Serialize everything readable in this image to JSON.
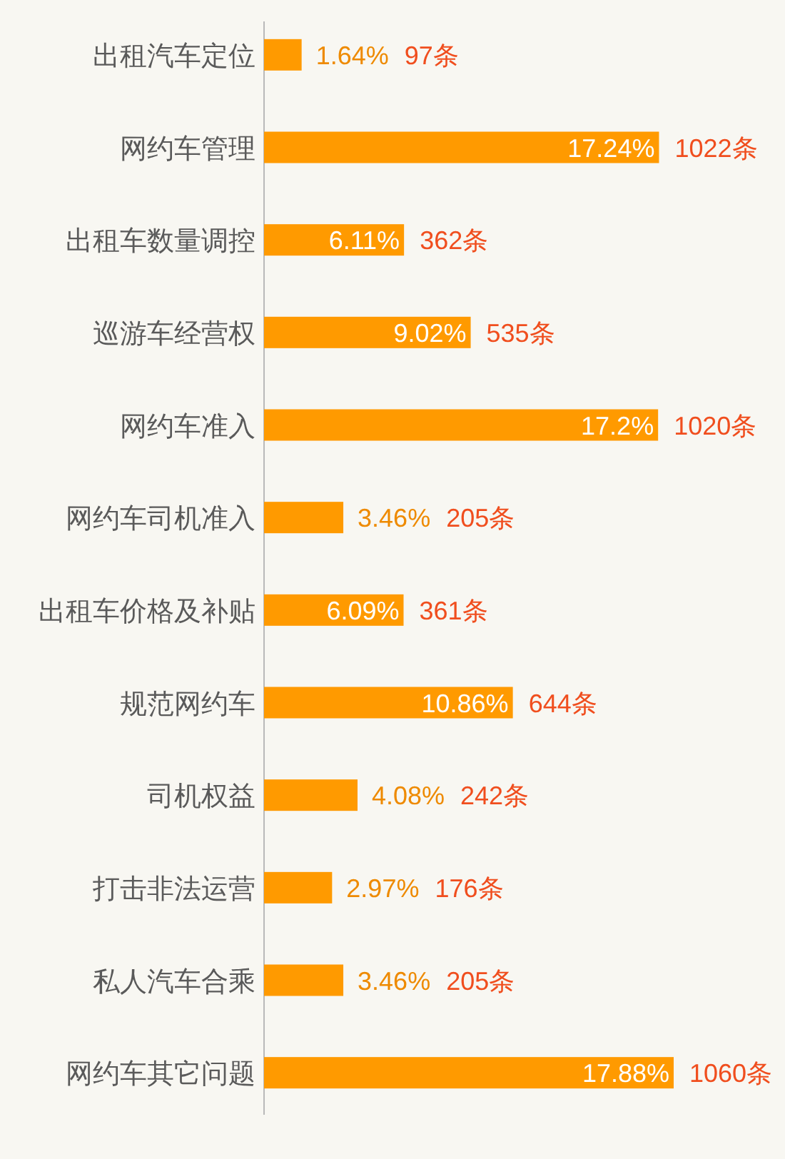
{
  "chart_data": {
    "type": "bar",
    "orientation": "horizontal",
    "tick_labels": "y",
    "color": "#ff9a00",
    "categories": [
      "出租汽车定位",
      "网约车管理",
      "出租车数量调控",
      "巡游车经营权",
      "网约车准入",
      "网约车司机准入",
      "出租车价格及补贴",
      "规范网约车",
      "司机权益",
      "打击非法运营",
      "私人汽车合乘",
      "网约车其它问题"
    ],
    "values": [
      1.64,
      17.24,
      6.11,
      9.02,
      17.2,
      3.46,
      6.09,
      10.86,
      4.08,
      2.97,
      3.46,
      17.88
    ],
    "value_labels": [
      "1.64%",
      "17.24%",
      "6.11%",
      "9.02%",
      "17.2%",
      "3.46%",
      "6.09%",
      "10.86%",
      "4.08%",
      "2.97%",
      "3.46%",
      "17.88%"
    ],
    "annotations": [
      "97条",
      "1022条",
      "362条",
      "535条",
      "1020条",
      "205条",
      "361条",
      "644条",
      "242条",
      "176条",
      "205条",
      "1060条"
    ]
  }
}
